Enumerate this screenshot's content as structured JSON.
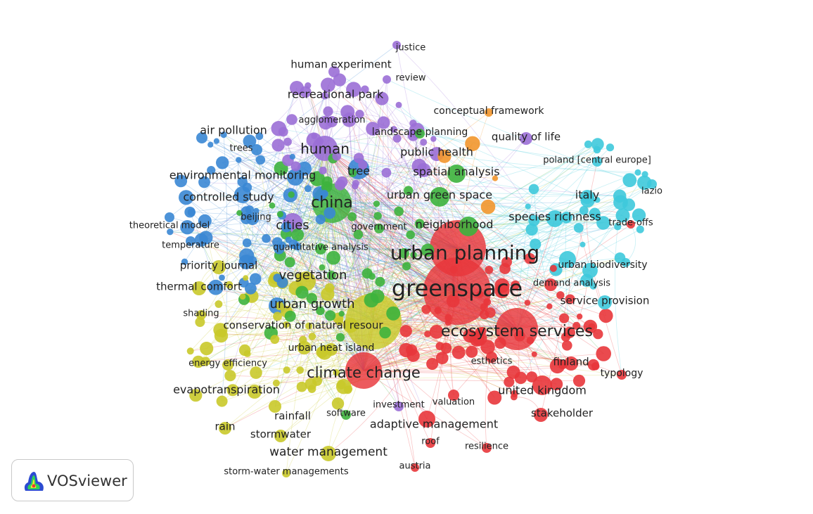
{
  "app": {
    "name": "VOSviewer"
  },
  "colors": {
    "red": "#e8363b",
    "green": "#3db33d",
    "blue": "#3a87d4",
    "yellow": "#c9c92a",
    "purple": "#9b6fd6",
    "cyan": "#3ec9dc",
    "orange": "#f2962c"
  },
  "labels": [
    {
      "text": "justice"
    },
    {
      "text": "human experiment"
    },
    {
      "text": "review"
    },
    {
      "text": "recreational park"
    },
    {
      "text": "conceptual framework"
    },
    {
      "text": "agglomeration"
    },
    {
      "text": "landscape planning"
    },
    {
      "text": "air pollution"
    },
    {
      "text": "quality of life"
    },
    {
      "text": "human"
    },
    {
      "text": "trees"
    },
    {
      "text": "public health"
    },
    {
      "text": "poland [central europe]"
    },
    {
      "text": "tree"
    },
    {
      "text": "spatial analysis"
    },
    {
      "text": "environmental monitoring"
    },
    {
      "text": "lazio"
    },
    {
      "text": "urban green space"
    },
    {
      "text": "italy"
    },
    {
      "text": "controlled study"
    },
    {
      "text": "china"
    },
    {
      "text": "species richness"
    },
    {
      "text": "beijing"
    },
    {
      "text": "trade-offs"
    },
    {
      "text": "neighborhood"
    },
    {
      "text": "theoretical model"
    },
    {
      "text": "cities"
    },
    {
      "text": "government"
    },
    {
      "text": "temperature"
    },
    {
      "text": "quantitative analysis"
    },
    {
      "text": "urban planning"
    },
    {
      "text": "priority journal"
    },
    {
      "text": "urban biodiversity"
    },
    {
      "text": "vegetation"
    },
    {
      "text": "demand analysis"
    },
    {
      "text": "thermal comfort"
    },
    {
      "text": "greenspace"
    },
    {
      "text": "service provision"
    },
    {
      "text": "urban growth"
    },
    {
      "text": "shading"
    },
    {
      "text": "conservation of natural resour"
    },
    {
      "text": "ecosystem services"
    },
    {
      "text": "urban heat island"
    },
    {
      "text": "esthetics"
    },
    {
      "text": "finland"
    },
    {
      "text": "energy efficiency"
    },
    {
      "text": "typology"
    },
    {
      "text": "climate change"
    },
    {
      "text": "evapotranspiration"
    },
    {
      "text": "united kingdom"
    },
    {
      "text": "investment"
    },
    {
      "text": "valuation"
    },
    {
      "text": "rainfall"
    },
    {
      "text": "software"
    },
    {
      "text": "stakeholder"
    },
    {
      "text": "adaptive management"
    },
    {
      "text": "rain"
    },
    {
      "text": "stormwater"
    },
    {
      "text": "roof"
    },
    {
      "text": "resilience"
    },
    {
      "text": "water management"
    },
    {
      "text": "austria"
    },
    {
      "text": "storm-water managements"
    }
  ]
}
